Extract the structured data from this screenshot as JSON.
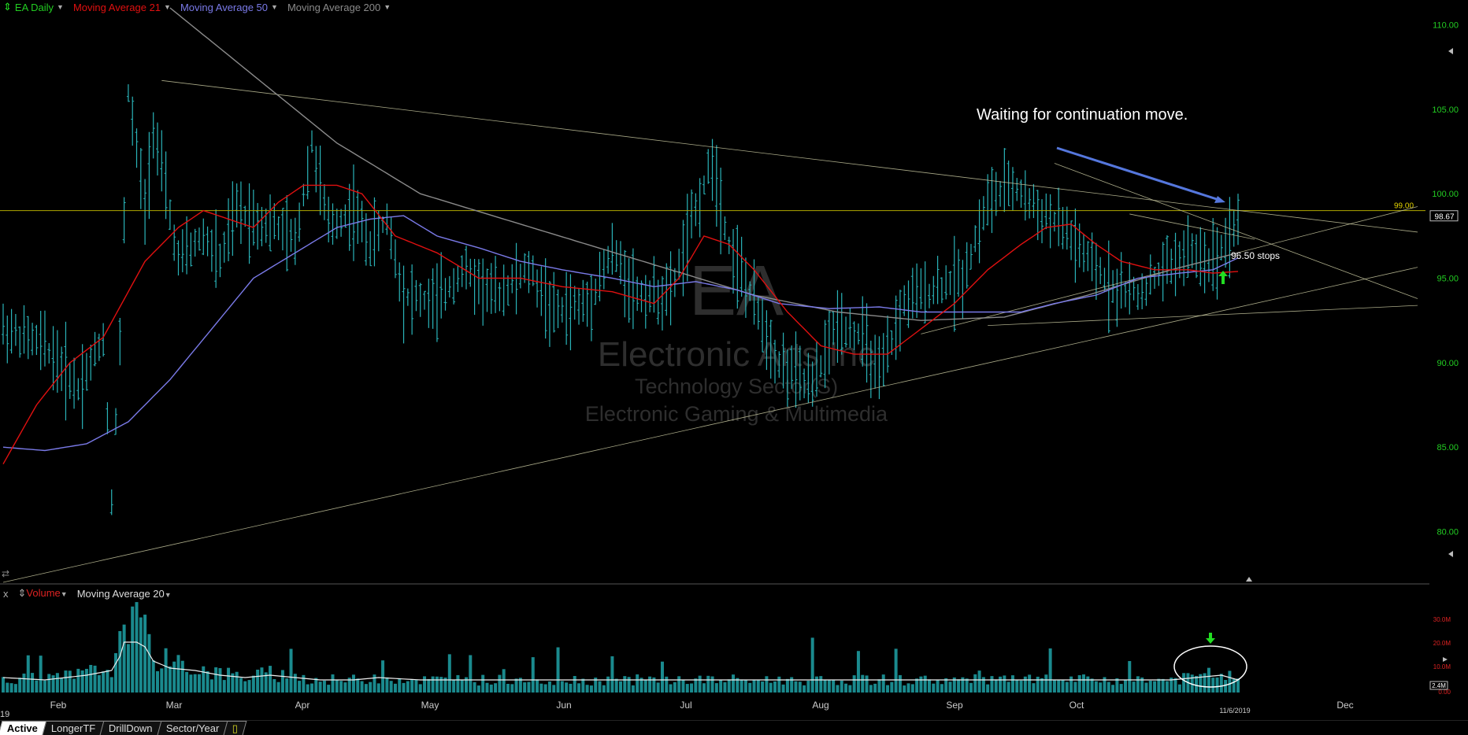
{
  "legend": {
    "symbol": "EA Daily",
    "ma21": "Moving Average 21",
    "ma50": "Moving Average 50",
    "ma200": "Moving Average 200"
  },
  "volume_legend": {
    "close": "x",
    "volume": "Volume",
    "ma20": "Moving Average 20"
  },
  "watermark": {
    "ticker": "EA",
    "company": "Electronic Arts Inc",
    "sector": "Technology Sector(S)",
    "industry": "Electronic Gaming & Multimedia"
  },
  "annotation": "Waiting for continuation move.",
  "stops_label": "96.50 stops",
  "last_price_label": "98.67",
  "level_label": "99.00",
  "date_label": "11/6/2019",
  "year_fragment": "19",
  "tabs": [
    "Active",
    "LongerTF",
    "DrillDown",
    "Sector/Year"
  ],
  "colors": {
    "background": "#000000",
    "bars": "#2ab3b8",
    "ma21": "#e01010",
    "ma50": "#7a7ae8",
    "ma200": "#8a8a8a",
    "trendline": "#c8c8a0",
    "resistance": "#b0a800",
    "axis_price": "#22cc22",
    "volume_axis": "#dd2222",
    "arrow": "#5577dd",
    "highlight": "#22dd22"
  },
  "chart_data": {
    "type": "bar",
    "title": "EA Daily",
    "x_ticks": [
      "Feb",
      "Mar",
      "Apr",
      "May",
      "Jun",
      "Jul",
      "Aug",
      "Sep",
      "Oct",
      "Dec"
    ],
    "y_ticks": [
      "110.00",
      "105.00",
      "100.00",
      "95.00",
      "90.00",
      "85.00",
      "80.00"
    ],
    "ylim": [
      77,
      111
    ],
    "resistance_level": 99.0,
    "last_price": 98.67,
    "stop_level": 96.5,
    "price_waypoints": [
      [
        0,
        92
      ],
      [
        10,
        91
      ],
      [
        18,
        88.5
      ],
      [
        24,
        91.5
      ],
      [
        26,
        82
      ],
      [
        28,
        91
      ],
      [
        30,
        106
      ],
      [
        34,
        99
      ],
      [
        36,
        104
      ],
      [
        42,
        96
      ],
      [
        48,
        97.5
      ],
      [
        52,
        96
      ],
      [
        56,
        99
      ],
      [
        60,
        98.5
      ],
      [
        66,
        98
      ],
      [
        70,
        97
      ],
      [
        74,
        103
      ],
      [
        78,
        98
      ],
      [
        84,
        99
      ],
      [
        88,
        97
      ],
      [
        92,
        98.5
      ],
      [
        96,
        94
      ],
      [
        104,
        93.5
      ],
      [
        110,
        95.5
      ],
      [
        118,
        94
      ],
      [
        126,
        95.5
      ],
      [
        132,
        93
      ],
      [
        140,
        93.5
      ],
      [
        146,
        96.5
      ],
      [
        152,
        94
      ],
      [
        160,
        94
      ],
      [
        166,
        99
      ],
      [
        170,
        102
      ],
      [
        174,
        97
      ],
      [
        180,
        93.5
      ],
      [
        186,
        90
      ],
      [
        194,
        88.5
      ],
      [
        200,
        92.5
      ],
      [
        206,
        91.5
      ],
      [
        210,
        89
      ],
      [
        216,
        93.5
      ],
      [
        224,
        94.5
      ],
      [
        230,
        95
      ],
      [
        236,
        99.5
      ],
      [
        242,
        100.5
      ],
      [
        248,
        99
      ],
      [
        254,
        98
      ],
      [
        260,
        96
      ],
      [
        266,
        94.5
      ],
      [
        272,
        94
      ],
      [
        278,
        95.5
      ],
      [
        284,
        96.5
      ],
      [
        290,
        96
      ],
      [
        296,
        98.5
      ]
    ],
    "ma21_waypoints": [
      [
        0,
        84
      ],
      [
        8,
        87.5
      ],
      [
        16,
        90
      ],
      [
        24,
        91.5
      ],
      [
        34,
        96
      ],
      [
        42,
        98
      ],
      [
        48,
        99
      ],
      [
        54,
        98.5
      ],
      [
        60,
        98
      ],
      [
        66,
        99.5
      ],
      [
        72,
        100.5
      ],
      [
        80,
        100.5
      ],
      [
        86,
        100
      ],
      [
        94,
        97.5
      ],
      [
        104,
        96.5
      ],
      [
        114,
        95
      ],
      [
        124,
        95
      ],
      [
        134,
        94.5
      ],
      [
        146,
        94.2
      ],
      [
        156,
        93.5
      ],
      [
        162,
        95
      ],
      [
        168,
        97.5
      ],
      [
        174,
        97
      ],
      [
        180,
        95.5
      ],
      [
        188,
        93
      ],
      [
        196,
        91
      ],
      [
        204,
        90.5
      ],
      [
        212,
        90.5
      ],
      [
        220,
        92
      ],
      [
        228,
        93.5
      ],
      [
        236,
        95.5
      ],
      [
        244,
        97
      ],
      [
        250,
        98
      ],
      [
        256,
        98.2
      ],
      [
        262,
        97
      ],
      [
        268,
        96
      ],
      [
        276,
        95.5
      ],
      [
        284,
        95.5
      ],
      [
        290,
        95.3
      ],
      [
        296,
        95.4
      ]
    ],
    "ma50_waypoints": [
      [
        0,
        85
      ],
      [
        10,
        84.8
      ],
      [
        20,
        85.2
      ],
      [
        30,
        86.5
      ],
      [
        40,
        89
      ],
      [
        50,
        92
      ],
      [
        60,
        95
      ],
      [
        70,
        96.5
      ],
      [
        80,
        98
      ],
      [
        88,
        98.5
      ],
      [
        96,
        98.7
      ],
      [
        104,
        97.5
      ],
      [
        114,
        96.8
      ],
      [
        124,
        96
      ],
      [
        134,
        95.5
      ],
      [
        146,
        95
      ],
      [
        156,
        94.5
      ],
      [
        166,
        94.8
      ],
      [
        176,
        94.3
      ],
      [
        186,
        93.5
      ],
      [
        198,
        93.2
      ],
      [
        210,
        93.3
      ],
      [
        220,
        93
      ],
      [
        232,
        93
      ],
      [
        244,
        93
      ],
      [
        252,
        93.5
      ],
      [
        262,
        94
      ],
      [
        272,
        95
      ],
      [
        282,
        95.3
      ],
      [
        290,
        95.5
      ],
      [
        296,
        96.2
      ]
    ],
    "ma200_waypoints": [
      [
        40,
        111
      ],
      [
        60,
        107
      ],
      [
        80,
        103
      ],
      [
        100,
        100
      ],
      [
        120,
        98.5
      ],
      [
        140,
        97
      ],
      [
        160,
        95.5
      ],
      [
        180,
        94
      ],
      [
        200,
        93
      ],
      [
        220,
        92.5
      ],
      [
        240,
        92.7
      ],
      [
        260,
        94
      ],
      [
        280,
        95.5
      ],
      [
        296,
        96.5
      ]
    ],
    "volume_waypoints": [
      [
        0,
        5
      ],
      [
        10,
        4
      ],
      [
        20,
        6
      ],
      [
        26,
        8
      ],
      [
        28,
        14
      ],
      [
        30,
        28
      ],
      [
        32,
        20
      ],
      [
        34,
        18
      ],
      [
        36,
        12
      ],
      [
        40,
        9
      ],
      [
        46,
        8
      ],
      [
        52,
        6
      ],
      [
        58,
        5
      ],
      [
        64,
        6
      ],
      [
        70,
        5
      ],
      [
        76,
        4
      ],
      [
        84,
        4
      ],
      [
        90,
        5
      ],
      [
        100,
        4
      ],
      [
        120,
        4
      ],
      [
        130,
        4
      ],
      [
        140,
        4
      ],
      [
        150,
        4
      ],
      [
        160,
        4
      ],
      [
        170,
        4
      ],
      [
        180,
        4
      ],
      [
        190,
        4
      ],
      [
        200,
        4
      ],
      [
        220,
        4
      ],
      [
        240,
        4
      ],
      [
        260,
        4
      ],
      [
        280,
        4
      ],
      [
        292,
        6
      ],
      [
        296,
        4
      ]
    ],
    "volume_ticks": [
      "30.0M",
      "20.0M",
      "10.0M",
      "2.4M",
      "0.00"
    ]
  }
}
